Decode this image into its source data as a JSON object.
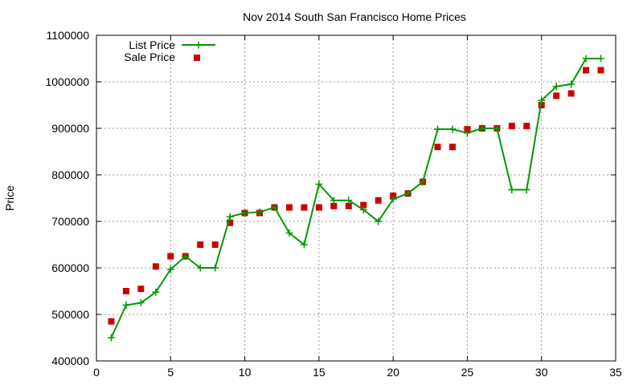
{
  "chart_data": {
    "type": "line",
    "title": "Nov 2014 South San Francisco Home Prices",
    "xlabel": "",
    "ylabel": "Price",
    "xlim": [
      0,
      35
    ],
    "ylim": [
      400000,
      1100000
    ],
    "x_ticks": [
      0,
      5,
      10,
      15,
      20,
      25,
      30,
      35
    ],
    "y_ticks": [
      400000,
      500000,
      600000,
      700000,
      800000,
      900000,
      1000000,
      1100000
    ],
    "grid": true,
    "legend_position": "top-left",
    "series": [
      {
        "name": "List Price",
        "style": "line+cross",
        "color": "#009900",
        "x": [
          1,
          2,
          3,
          4,
          5,
          6,
          7,
          8,
          9,
          10,
          11,
          12,
          13,
          14,
          15,
          16,
          17,
          18,
          19,
          20,
          21,
          22,
          23,
          24,
          25,
          26,
          27,
          28,
          29,
          30,
          31,
          32,
          33,
          34
        ],
        "values": [
          450000,
          520000,
          525000,
          548000,
          597000,
          625000,
          600000,
          600000,
          710000,
          718000,
          720000,
          730000,
          675000,
          650000,
          780000,
          745000,
          745000,
          725000,
          700000,
          748000,
          760000,
          785000,
          898000,
          898000,
          890000,
          900000,
          900000,
          768000,
          768000,
          960000,
          990000,
          995000,
          1050000,
          1050000
        ]
      },
      {
        "name": "Sale Price",
        "style": "square",
        "color": "#cc0000",
        "x": [
          1,
          2,
          3,
          4,
          5,
          6,
          7,
          8,
          9,
          10,
          11,
          12,
          13,
          14,
          15,
          16,
          17,
          18,
          19,
          20,
          21,
          22,
          23,
          24,
          25,
          26,
          27,
          28,
          29,
          30,
          31,
          32,
          33,
          34
        ],
        "values": [
          485000,
          550000,
          555000,
          603000,
          625000,
          625000,
          650000,
          650000,
          697000,
          718000,
          718000,
          730000,
          730000,
          730000,
          730000,
          733000,
          733000,
          735000,
          745000,
          755000,
          760000,
          785000,
          860000,
          860000,
          898000,
          900000,
          900000,
          905000,
          905000,
          950000,
          970000,
          975000,
          1025000,
          1025000
        ]
      }
    ]
  }
}
